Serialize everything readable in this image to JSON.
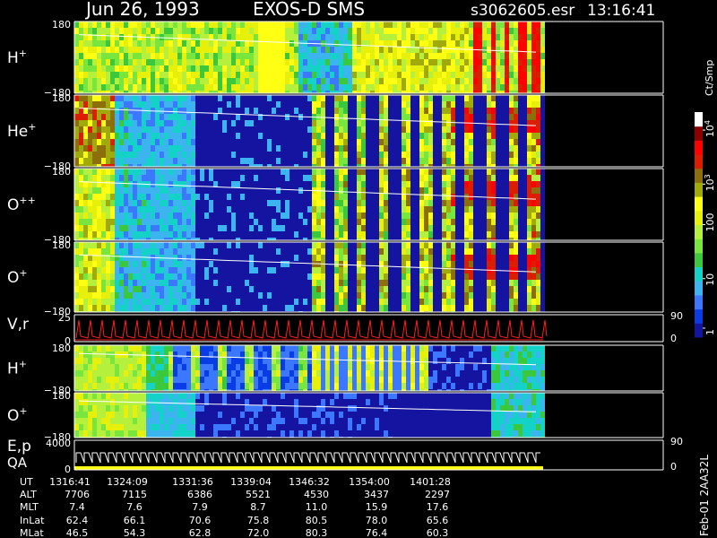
{
  "header": {
    "date": "Jun 26, 1993",
    "mission": "EXOS-D SMS",
    "file": "s3062605.esr",
    "time": "13:16:41"
  },
  "colorbar": {
    "unit_label": "Ct/Smp",
    "ticks": [
      {
        "label": "10",
        "sup": "4",
        "level": 10000
      },
      {
        "label": "10",
        "sup": "3",
        "level": 1000
      },
      {
        "label": "100",
        "sup": "",
        "level": 100
      },
      {
        "label": "10",
        "sup": "",
        "level": 10
      },
      {
        "label": "1",
        "sup": "",
        "level": 1
      }
    ],
    "colors": [
      "#1414a0",
      "#0a3ce6",
      "#3c78ff",
      "#3cb4f0",
      "#14d2c8",
      "#3cc83c",
      "#78e63c",
      "#b4f03c",
      "#e6f00a",
      "#ffff14",
      "#a0aa0a",
      "#8c6e0a",
      "#dc1e00",
      "#ff0000",
      "#8c0000",
      "#ffffff"
    ]
  },
  "chart_data": {
    "type": "heatmap",
    "panels": [
      {
        "label": "H",
        "sup": "+",
        "ylim": [
          -180,
          180
        ],
        "ticks": [
          "180",
          "−180"
        ]
      },
      {
        "label": "He",
        "sup": "+",
        "ylim": [
          -180,
          180
        ],
        "ticks": [
          "180",
          "−180"
        ]
      },
      {
        "label": "O",
        "sup": "++",
        "ylim": [
          -180,
          180
        ],
        "ticks": [
          "180",
          "−180"
        ]
      },
      {
        "label": "O",
        "sup": "+",
        "ylim": [
          -180,
          180
        ],
        "ticks": [
          "180",
          "−180"
        ]
      },
      {
        "label": "V,r",
        "sup": "",
        "ylim": [
          0,
          25
        ],
        "ticks": [
          "25",
          "0"
        ],
        "right_ticks": [
          "90",
          "0"
        ]
      },
      {
        "label": "H",
        "sup": "+",
        "ylim": [
          -180,
          180
        ],
        "ticks": [
          "180",
          "−180"
        ]
      },
      {
        "label": "O",
        "sup": "+",
        "ylim": [
          -180,
          180
        ],
        "ticks": [
          "180",
          "−180"
        ]
      },
      {
        "label": "E,p",
        "label2": "QA",
        "sup": "",
        "ylim": [
          0,
          4000
        ],
        "ticks": [
          "4000",
          "0"
        ],
        "right_ticks": [
          "90",
          "0"
        ]
      }
    ],
    "time_axis": {
      "row_labels": [
        "UT",
        "ALT",
        "MLT",
        "InLat",
        "MLat"
      ],
      "columns": [
        {
          "UT": "1316:41",
          "ALT": "7706",
          "MLT": "7.4",
          "InLat": "62.4",
          "MLat": "46.5"
        },
        {
          "UT": "1324:09",
          "ALT": "7115",
          "MLT": "7.6",
          "InLat": "66.1",
          "MLat": "54.3"
        },
        {
          "UT": "1331:36",
          "ALT": "6386",
          "MLT": "7.9",
          "InLat": "70.6",
          "MLat": "62.8"
        },
        {
          "UT": "1339:04",
          "ALT": "5521",
          "MLT": "8.7",
          "InLat": "75.8",
          "MLat": "72.0"
        },
        {
          "UT": "1346:32",
          "ALT": "4530",
          "MLT": "11.0",
          "InLat": "80.5",
          "MLat": "80.3"
        },
        {
          "UT": "1354:00",
          "ALT": "3437",
          "MLT": "15.9",
          "InLat": "78.0",
          "MLat": "76.4"
        },
        {
          "UT": "1401:28",
          "ALT": "2297",
          "MLT": "17.6",
          "InLat": "65.6",
          "MLat": "60.3"
        }
      ]
    }
  },
  "footer_stamp": "Feb-01 2AA32L"
}
